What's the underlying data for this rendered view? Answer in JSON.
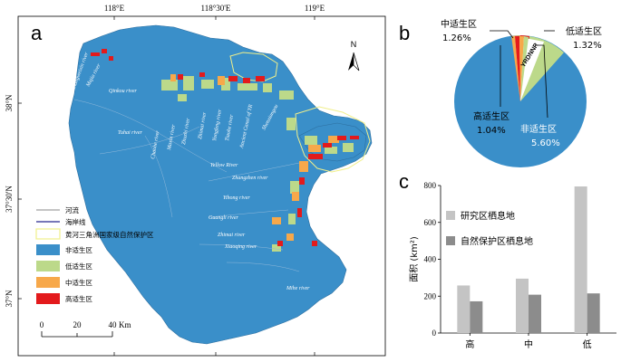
{
  "panels": {
    "a": "a",
    "b": "b",
    "c": "c"
  },
  "map": {
    "lon_labels": [
      "118°E",
      "118°30'E",
      "119°E"
    ],
    "lat_labels": [
      "38°N",
      "37°30'N",
      "37°N"
    ],
    "north_label": "N",
    "scale": {
      "ticks": [
        "0",
        "20",
        "40"
      ],
      "unit": "Km"
    },
    "rivers": [
      "Zhangweixin river",
      "Majia river",
      "Qinkou river",
      "Tuhai river",
      "Chaohe river",
      "Maxin river",
      "Zhuzhi river",
      "Zhimai river",
      "Yongfeng river",
      "Tiaohe river",
      "Ancient Canal of YR",
      "Shenxiangou",
      "Yellow River",
      "Zhangzhen river",
      "Yihong river",
      "Guangli river",
      "Zhimai river",
      "Xiaoqing river",
      "Mihe river"
    ],
    "legend": [
      {
        "label": "河流",
        "kind": "line",
        "color": "#b0b0b0"
      },
      {
        "label": "海岸线",
        "kind": "line",
        "color": "#4a4aa0"
      },
      {
        "label": "黄河三角洲国家级自然保护区",
        "kind": "outline",
        "color": "#f0ef8a"
      },
      {
        "label": "非适生区",
        "kind": "fill",
        "color": "#3a8fc9"
      },
      {
        "label": "低适生区",
        "kind": "fill",
        "color": "#bcd98a"
      },
      {
        "label": "中适生区",
        "kind": "fill",
        "color": "#f7a84a"
      },
      {
        "label": "高适生区",
        "kind": "fill",
        "color": "#e31a1c"
      }
    ]
  },
  "pie": {
    "labels": {
      "mid": {
        "name": "中适生区",
        "value": "1.26%"
      },
      "low": {
        "name": "低适生区",
        "value": "1.32%"
      },
      "high": {
        "name": "高适生区",
        "value": "1.04%"
      },
      "non": {
        "name": "非适生区",
        "value": "5.60%"
      }
    },
    "center_text": "YRDNNR",
    "colors": {
      "non": "#3a8fc9",
      "low": "#bcd98a",
      "mid": "#f7a84a",
      "high": "#e31a1c"
    }
  },
  "chart_data": {
    "type": "bar",
    "categories": [
      "高",
      "中",
      "低"
    ],
    "series": [
      {
        "name": "研究区栖息地",
        "values": [
          258,
          295,
          795
        ],
        "color": "#c4c4c4"
      },
      {
        "name": "自然保护区栖息地",
        "values": [
          172,
          208,
          215
        ],
        "color": "#8c8c8c"
      }
    ],
    "ylabel": "面积 (km²)",
    "ylim": [
      0,
      800
    ],
    "yticks": [
      "0",
      "200",
      "400",
      "600",
      "800"
    ],
    "legend_position": "top-left"
  }
}
